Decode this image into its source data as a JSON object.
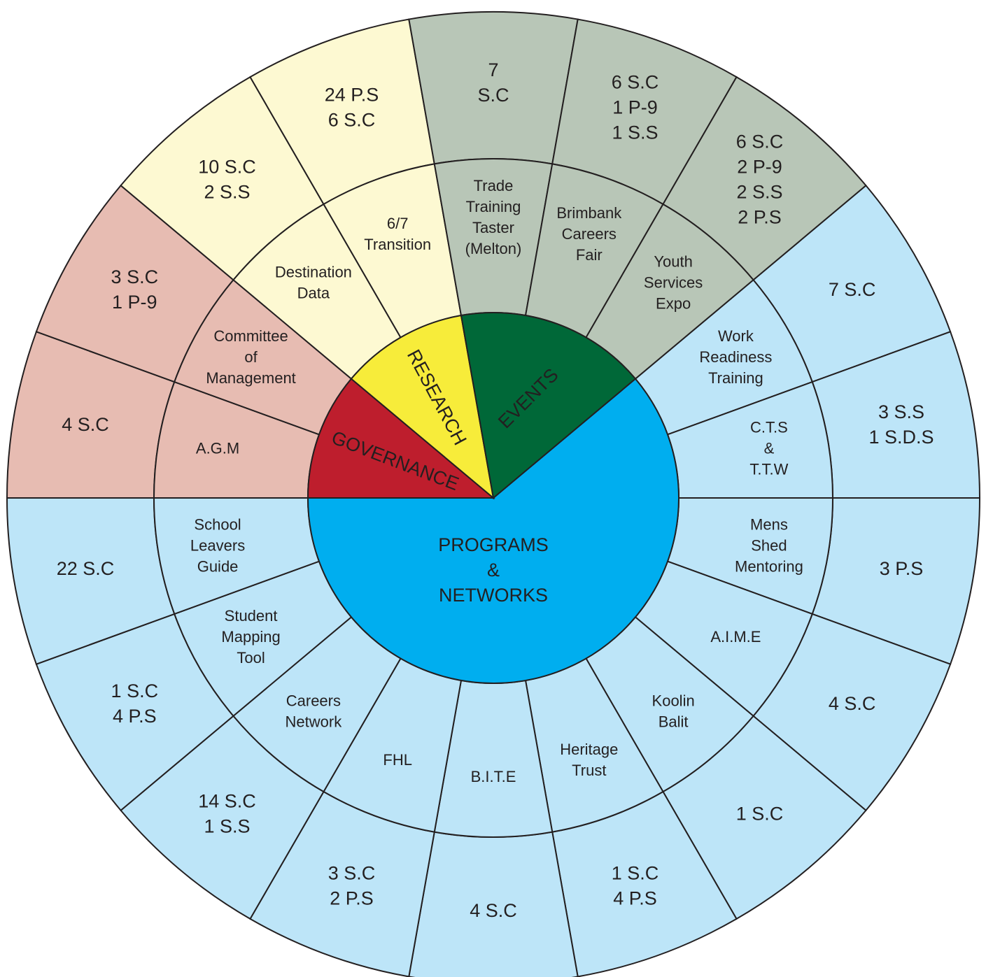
{
  "segments": [
    {
      "label": [
        "PROGRAMS",
        "&",
        "NETWORKS"
      ],
      "color": "#00aeef",
      "light_color": "#bde5f8",
      "items": [
        {
          "label": [
            "Work",
            "Readiness",
            "Training"
          ],
          "values": [
            "7 S.C"
          ]
        },
        {
          "label": [
            "C.T.S",
            "&",
            "T.T.W"
          ],
          "values": [
            "3 S.S",
            "1 S.D.S"
          ]
        },
        {
          "label": [
            "Mens",
            "Shed",
            "Mentoring"
          ],
          "values": [
            "3 P.S"
          ]
        },
        {
          "label": [
            "A.I.M.E"
          ],
          "values": [
            "4 S.C"
          ]
        },
        {
          "label": [
            "Koolin",
            "Balit"
          ],
          "values": [
            "1 S.C"
          ]
        },
        {
          "label": [
            "Heritage",
            "Trust"
          ],
          "values": [
            "1 S.C",
            "4 P.S"
          ]
        },
        {
          "label": [
            "B.I.T.E"
          ],
          "values": [
            "4 S.C"
          ]
        },
        {
          "label": [
            "FHL"
          ],
          "values": [
            "3 S.C",
            "2 P.S"
          ]
        },
        {
          "label": [
            "Careers",
            "Network"
          ],
          "values": [
            "14 S.C",
            "1 S.S"
          ]
        },
        {
          "label": [
            "Student",
            "Mapping",
            "Tool"
          ],
          "values": [
            "1 S.C",
            "4 P.S"
          ]
        },
        {
          "label": [
            "School",
            "Leavers",
            "Guide"
          ],
          "values": [
            "22 S.C"
          ]
        }
      ]
    },
    {
      "label": [
        "GOVERNANCE"
      ],
      "color": "#be1e2d",
      "light_color": "#e7bcb2",
      "items": [
        {
          "label": [
            "A.G.M"
          ],
          "values": [
            "4 S.C"
          ]
        },
        {
          "label": [
            "Committee",
            "of",
            "Management"
          ],
          "values": [
            "3 S.C",
            "1 P-9"
          ]
        }
      ]
    },
    {
      "label": [
        "RESEARCH"
      ],
      "color": "#f7ec3a",
      "light_color": "#fdf9d2",
      "items": [
        {
          "label": [
            "Destination",
            "Data"
          ],
          "values": [
            "10 S.C",
            "2 S.S"
          ]
        },
        {
          "label": [
            "6/7",
            "Transition"
          ],
          "values": [
            "24 P.S",
            "6 S.C"
          ]
        }
      ]
    },
    {
      "label": [
        "EVENTS"
      ],
      "color": "#006838",
      "light_color": "#b8c6b7",
      "items": [
        {
          "label": [
            "Trade",
            "Training",
            "Taster",
            "(Melton)"
          ],
          "values": [
            "7",
            "S.C"
          ]
        },
        {
          "label": [
            "Brimbank",
            "Careers",
            "Fair"
          ],
          "values": [
            "6 S.C",
            "1 P-9",
            "1 S.S"
          ]
        },
        {
          "label": [
            "Youth",
            "Services",
            "Expo"
          ],
          "values": [
            "6 S.C",
            "2 P-9",
            "2 S.S",
            "2 P.S"
          ]
        }
      ]
    }
  ]
}
